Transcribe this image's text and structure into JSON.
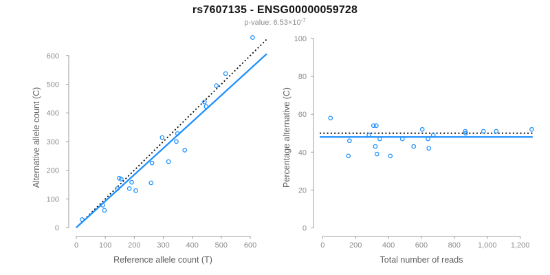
{
  "figure": {
    "title": "rs7607135 - ENSG00000059728",
    "subtitle": {
      "prefix": "p-value: 6.53×10",
      "exponent": "-7"
    }
  },
  "colors": {
    "accent_blue": "#1E90FF",
    "identity_black": "#111111",
    "axis_gray": "#9e9e9e",
    "tick_text_gray": "#8a8a8a",
    "subtitle_gray": "#8c8c8c"
  },
  "chart_data": [
    {
      "type": "scatter",
      "title": "",
      "xlabel": "Reference allele count (T)",
      "ylabel": "Alternative allele count (C)",
      "xlim": [
        -28,
        672
      ],
      "ylim": [
        -30,
        665
      ],
      "xtick_values": [
        0,
        100,
        200,
        300,
        400,
        500,
        600
      ],
      "xtick_labels": [
        "0",
        "100",
        "200",
        "300",
        "400",
        "500",
        "600"
      ],
      "ytick_values": [
        0,
        100,
        200,
        300,
        400,
        500,
        600
      ],
      "ytick_labels": [
        "0",
        "100",
        "200",
        "300",
        "400",
        "500",
        "600"
      ],
      "grid": false,
      "legend": null,
      "points": [
        [
          20,
          28
        ],
        [
          91,
          78
        ],
        [
          97,
          60
        ],
        [
          142,
          136
        ],
        [
          148,
          172
        ],
        [
          155,
          169
        ],
        [
          183,
          136
        ],
        [
          191,
          158
        ],
        [
          205,
          129
        ],
        [
          258,
          156
        ],
        [
          261,
          225
        ],
        [
          296,
          314
        ],
        [
          318,
          230
        ],
        [
          345,
          300
        ],
        [
          349,
          328
        ],
        [
          374,
          270
        ],
        [
          442,
          438
        ],
        [
          448,
          422
        ],
        [
          483,
          495
        ],
        [
          515,
          537
        ],
        [
          608,
          663
        ]
      ],
      "lines": [
        {
          "name": "identity-line",
          "meaning": "y = x expected line",
          "style": "dotted",
          "color": "#111111",
          "points": [
            [
              0,
              0
            ],
            [
              658,
              658
            ]
          ]
        },
        {
          "name": "regression-line",
          "meaning": "fitted trend",
          "style": "solid",
          "color": "#1E90FF",
          "points": [
            [
              0,
              0
            ],
            [
              657,
              606
            ]
          ]
        }
      ]
    },
    {
      "type": "scatter",
      "title": "",
      "xlabel": "Total number of reads",
      "ylabel": "Percentage alternative (C)",
      "xlim": [
        -56,
        1280
      ],
      "ylim": [
        -4,
        100
      ],
      "xtick_values": [
        0,
        200,
        400,
        600,
        800,
        1000,
        1200
      ],
      "xtick_labels": [
        "0",
        "200",
        "400",
        "600",
        "800",
        "1,000",
        "1,200"
      ],
      "ytick_values": [
        0,
        20,
        40,
        60,
        80,
        100
      ],
      "ytick_labels": [
        "0",
        "20",
        "40",
        "60",
        "80",
        "100"
      ],
      "grid": false,
      "legend": null,
      "points": [
        [
          48,
          58
        ],
        [
          156,
          38
        ],
        [
          163,
          46
        ],
        [
          281,
          49
        ],
        [
          309,
          54
        ],
        [
          320,
          43
        ],
        [
          326,
          54
        ],
        [
          330,
          39
        ],
        [
          347,
          47
        ],
        [
          411,
          38
        ],
        [
          484,
          47
        ],
        [
          553,
          43
        ],
        [
          605,
          52
        ],
        [
          640,
          47
        ],
        [
          645,
          42
        ],
        [
          672,
          49
        ],
        [
          866,
          51
        ],
        [
          869,
          50
        ],
        [
          977,
          51
        ],
        [
          1054,
          51
        ],
        [
          1270,
          52
        ]
      ],
      "lines": [
        {
          "name": "expected-50pct-line",
          "meaning": "expected 50% line",
          "style": "dotted",
          "color": "#111111",
          "points": [
            [
              -18,
              50
            ],
            [
              1276,
              50
            ]
          ]
        },
        {
          "name": "mean-line",
          "meaning": "observed mean percentage",
          "style": "solid",
          "color": "#1E90FF",
          "points": [
            [
              -18,
              48
            ],
            [
              1276,
              48
            ]
          ]
        }
      ]
    }
  ]
}
